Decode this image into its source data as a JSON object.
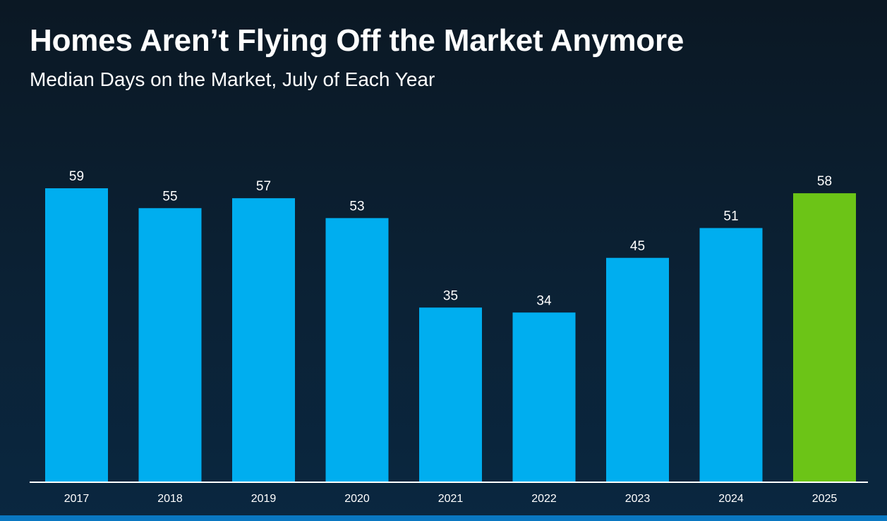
{
  "chart_data": {
    "type": "bar",
    "title": "Homes Aren’t Flying Off the Market Anymore",
    "subtitle": "Median Days on the Market, July of Each Year",
    "xlabel": "",
    "ylabel": "Median Days on the Market",
    "categories": [
      "2017",
      "2018",
      "2019",
      "2020",
      "2021",
      "2022",
      "2023",
      "2024",
      "2025"
    ],
    "values": [
      59,
      55,
      57,
      53,
      35,
      34,
      45,
      51,
      58
    ],
    "ylim": [
      0,
      59
    ],
    "grid": false,
    "colors": {
      "default": "#00aeef",
      "highlight": "#6cc417",
      "axis": "#ffffff"
    },
    "highlight_index": 8
  }
}
